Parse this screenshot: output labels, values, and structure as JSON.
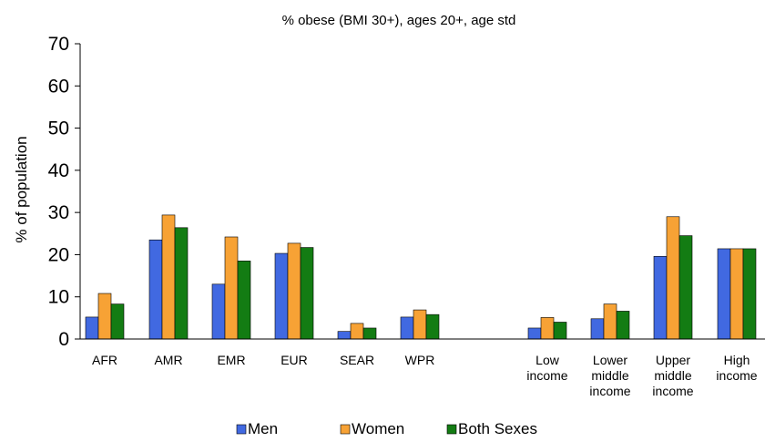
{
  "chart_data": {
    "type": "bar",
    "title": "% obese (BMI 30+), ages 20+, age std",
    "ylabel": "% of population",
    "xlabel": "",
    "ylim": [
      0,
      70
    ],
    "yticks": [
      0,
      10,
      20,
      30,
      40,
      50,
      60,
      70
    ],
    "grid": false,
    "legend": "bottom",
    "categories": [
      [
        "AFR"
      ],
      [
        "AMR"
      ],
      [
        "EMR"
      ],
      [
        "EUR"
      ],
      [
        "SEAR"
      ],
      [
        "WPR"
      ],
      [
        "Low",
        "income"
      ],
      [
        "Lower",
        "middle",
        "income"
      ],
      [
        "Upper",
        "middle",
        "income"
      ],
      [
        "High",
        "income"
      ]
    ],
    "series": [
      {
        "name": "Men",
        "color": "#4169e1",
        "values": [
          5.2,
          23.5,
          13.0,
          20.3,
          1.8,
          5.2,
          2.6,
          4.8,
          19.6,
          21.4
        ]
      },
      {
        "name": "Women",
        "color": "#f7a235",
        "values": [
          10.8,
          29.4,
          24.2,
          22.7,
          3.7,
          6.9,
          5.1,
          8.3,
          29.0,
          21.4
        ]
      },
      {
        "name": "Both Sexes",
        "color": "#137c13",
        "values": [
          8.3,
          26.4,
          18.5,
          21.7,
          2.6,
          5.8,
          4.0,
          6.6,
          24.5,
          21.4
        ]
      }
    ]
  }
}
